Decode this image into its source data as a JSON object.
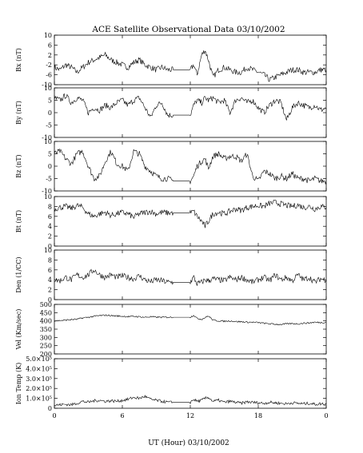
{
  "chart_data": {
    "type": "line",
    "title": "ACE Satellite Observational Data   03/10/2002",
    "xlabel": "UT (Hour)   03/10/2002",
    "x_ticks": [
      "0",
      "6",
      "12",
      "18",
      "0"
    ],
    "xlim": [
      0,
      24
    ],
    "grid": false,
    "panels": [
      {
        "ylabel": "Bx (nT)",
        "ylim": [
          -10,
          10
        ],
        "y_ticks": [
          "10",
          "6",
          "2",
          "-2",
          "-6",
          "-10"
        ],
        "series": [
          {
            "x": [
              0,
              0.5,
              1,
              1.5,
              2,
              2.5,
              3,
              3.5,
              4,
              4.5,
              5,
              5.5,
              6,
              6.5,
              7,
              7.5,
              8,
              8.5,
              9,
              9.5,
              10,
              10.5,
              11,
              11.5,
              12,
              12.3,
              12.6,
              13,
              13.3,
              13.6,
              14,
              14.5,
              15,
              15.5,
              16,
              16.5,
              17,
              17.5,
              18,
              18.5,
              19,
              19.5,
              20,
              20.5,
              21,
              21.5,
              22,
              22.5,
              23,
              23.5,
              24
            ],
            "y": [
              -3,
              -4,
              -2,
              -3,
              -5,
              -3,
              -1,
              0,
              1,
              2,
              0,
              -1,
              -2,
              -3,
              -1,
              0,
              -2,
              -3,
              -4,
              -3,
              -4,
              -4,
              -4,
              -4,
              -4,
              -2,
              -6,
              2,
              4,
              0,
              -7,
              -4,
              -3,
              -4,
              -5,
              -5,
              -3,
              -4,
              -5,
              -6,
              -8,
              -7,
              -6,
              -5,
              -4,
              -4,
              -5,
              -5,
              -5,
              -4,
              -4
            ]
          }
        ]
      },
      {
        "ylabel": "By (nT)",
        "ylim": [
          -10,
          10
        ],
        "y_ticks": [
          "10",
          "5",
          "0",
          "-5",
          "-10"
        ],
        "series": [
          {
            "x": [
              0,
              0.5,
              1,
              1.5,
              2,
              2.5,
              3,
              3.5,
              4,
              4.5,
              5,
              5.5,
              6,
              6.5,
              7,
              7.5,
              8,
              8.5,
              9,
              9.5,
              10,
              10.5,
              11,
              11.5,
              12,
              12.3,
              12.6,
              13,
              13.3,
              13.6,
              14,
              14.5,
              15,
              15.5,
              16,
              16.5,
              17,
              17.5,
              18,
              18.5,
              19,
              19.5,
              20,
              20.5,
              21,
              21.5,
              22,
              22.5,
              23,
              23.5,
              24
            ],
            "y": [
              6,
              5,
              7,
              4,
              6,
              5,
              0,
              2,
              1,
              3,
              2,
              4,
              5,
              3,
              5,
              6,
              2,
              -2,
              3,
              4,
              -1,
              -1,
              -1,
              -1,
              -1,
              3,
              5,
              4,
              6,
              5,
              6,
              4,
              5,
              0,
              5,
              6,
              4,
              5,
              2,
              0,
              3,
              5,
              4,
              -3,
              2,
              4,
              3,
              2,
              3,
              1,
              2
            ]
          }
        ]
      },
      {
        "ylabel": "Bz (nT)",
        "ylim": [
          -10,
          10
        ],
        "y_ticks": [
          "10",
          "5",
          "0",
          "-5",
          "-10"
        ],
        "series": [
          {
            "x": [
              0,
              0.5,
              1,
              1.5,
              2,
              2.5,
              3,
              3.5,
              4,
              4.5,
              5,
              5.5,
              6,
              6.5,
              7,
              7.5,
              8,
              8.5,
              9,
              9.5,
              10,
              10.5,
              11,
              11.5,
              12,
              12.3,
              12.6,
              13,
              13.3,
              13.6,
              14,
              14.5,
              15,
              15.5,
              16,
              16.5,
              17,
              17.5,
              18,
              18.5,
              19,
              19.5,
              20,
              20.5,
              21,
              21.5,
              22,
              22.5,
              23,
              23.5,
              24
            ],
            "y": [
              5,
              6,
              3,
              1,
              5,
              6,
              0,
              -5,
              -4,
              2,
              6,
              1,
              0,
              -2,
              6,
              5,
              0,
              -2,
              -4,
              -5,
              -5,
              -6,
              -6,
              -6,
              -6,
              -4,
              0,
              2,
              3,
              -1,
              4,
              5,
              3,
              4,
              4,
              2,
              5,
              -4,
              -6,
              -2,
              -3,
              -5,
              -4,
              -5,
              -3,
              -5,
              -5,
              -6,
              -5,
              -6,
              -6
            ]
          }
        ]
      },
      {
        "ylabel": "Bt (nT)",
        "ylim": [
          0,
          10
        ],
        "y_ticks": [
          "10",
          "8",
          "6",
          "4",
          "2",
          "0"
        ],
        "series": [
          {
            "x": [
              0,
              0.5,
              1,
              1.5,
              2,
              2.5,
              3,
              3.5,
              4,
              4.5,
              5,
              5.5,
              6,
              6.5,
              7,
              7.5,
              8,
              8.5,
              9,
              9.5,
              10,
              10.5,
              11,
              11.5,
              12,
              12.3,
              12.6,
              13,
              13.3,
              13.6,
              14,
              14.5,
              15,
              15.5,
              16,
              16.5,
              17,
              17.5,
              18,
              18.5,
              19,
              19.5,
              20,
              20.5,
              21,
              21.5,
              22,
              22.5,
              23,
              23.5,
              24
            ],
            "y": [
              7.5,
              7.8,
              8,
              7.6,
              8.2,
              7.8,
              6.5,
              6,
              6.5,
              6.8,
              6.2,
              6.5,
              6.8,
              6.5,
              5.8,
              6.5,
              6.8,
              7,
              6.5,
              6.8,
              6.7,
              6.7,
              6.7,
              6.7,
              6.7,
              7,
              6,
              5,
              4,
              5,
              6.5,
              6.8,
              6.5,
              7,
              7.5,
              7.2,
              7.8,
              8,
              8.2,
              8,
              8.6,
              8.8,
              8.5,
              8.2,
              8,
              8.3,
              7.8,
              8,
              7.5,
              8,
              7.8
            ]
          }
        ]
      },
      {
        "ylabel": "Den (1/CC)",
        "ylim": [
          0,
          10
        ],
        "y_ticks": [
          "10",
          "8",
          "6",
          "4",
          "2",
          "0"
        ],
        "series": [
          {
            "x": [
              0,
              0.5,
              1,
              1.5,
              2,
              2.5,
              3,
              3.5,
              4,
              4.5,
              5,
              5.5,
              6,
              6.5,
              7,
              7.5,
              8,
              8.5,
              9,
              9.5,
              10,
              10.5,
              11,
              11.5,
              12,
              12.3,
              12.6,
              13,
              13.3,
              13.6,
              14,
              14.5,
              15,
              15.5,
              16,
              16.5,
              17,
              17.5,
              18,
              18.5,
              19,
              19.5,
              20,
              20.5,
              21,
              21.5,
              22,
              22.5,
              23,
              23.5,
              24
            ],
            "y": [
              4,
              3.8,
              4.5,
              4,
              5,
              4.5,
              5,
              6,
              5,
              4.5,
              5,
              4.5,
              4.8,
              4.5,
              4.2,
              4.8,
              4,
              3.6,
              4,
              3.8,
              3.5,
              3.5,
              3.5,
              3.5,
              3.5,
              4.5,
              3.2,
              3.5,
              4,
              3.8,
              4.2,
              4,
              3.8,
              4.5,
              4,
              4.5,
              4,
              3.5,
              4,
              4.5,
              3.8,
              5,
              4,
              4.5,
              3.8,
              5,
              4,
              4.5,
              3.5,
              4.2,
              4
            ]
          }
        ]
      },
      {
        "ylabel": "Vel (Km/sec)",
        "ylim": [
          200,
          500
        ],
        "y_ticks": [
          "500",
          "450",
          "400",
          "350",
          "300",
          "250",
          "200"
        ],
        "series": [
          {
            "x": [
              0,
              0.5,
              1,
              1.5,
              2,
              2.5,
              3,
              3.5,
              4,
              4.5,
              5,
              5.5,
              6,
              6.5,
              7,
              7.5,
              8,
              8.5,
              9,
              9.5,
              10,
              10.5,
              11,
              11.5,
              12,
              12.3,
              12.6,
              13,
              13.3,
              13.6,
              14,
              14.5,
              15,
              15.5,
              16,
              16.5,
              17,
              17.5,
              18,
              18.5,
              19,
              19.5,
              20,
              20.5,
              21,
              21.5,
              22,
              22.5,
              23,
              23.5,
              24
            ],
            "y": [
              400,
              402,
              405,
              408,
              410,
              418,
              422,
              428,
              432,
              435,
              432,
              430,
              428,
              426,
              428,
              425,
              422,
              425,
              423,
              422,
              422,
              422,
              422,
              422,
              422,
              435,
              415,
              410,
              420,
              430,
              405,
              400,
              398,
              400,
              396,
              395,
              392,
              392,
              390,
              386,
              382,
              380,
              378,
              382,
              384,
              382,
              386,
              388,
              392,
              390,
              392
            ]
          }
        ]
      },
      {
        "ylabel": "Ion Temp (K)",
        "ylim": [
          0,
          500000
        ],
        "y_ticks": [
          "0",
          "1.0×10⁵",
          "2.0×10⁵",
          "3.0×10⁵",
          "4.0×10⁵",
          "5.0×10⁵"
        ],
        "series": [
          {
            "x": [
              0,
              0.5,
              1,
              1.5,
              2,
              2.5,
              3,
              3.5,
              4,
              4.5,
              5,
              5.5,
              6,
              6.5,
              7,
              7.5,
              8,
              8.5,
              9,
              9.5,
              10,
              10.5,
              11,
              11.5,
              12,
              12.3,
              12.6,
              13,
              13.3,
              13.6,
              14,
              14.5,
              15,
              15.5,
              16,
              16.5,
              17,
              17.5,
              18,
              18.5,
              19,
              19.5,
              20,
              20.5,
              21,
              21.5,
              22,
              22.5,
              23,
              23.5,
              24
            ],
            "y": [
              30000,
              35000,
              40000,
              35000,
              50000,
              70000,
              60000,
              75000,
              80000,
              70000,
              75000,
              70000,
              80000,
              90000,
              110000,
              100000,
              120000,
              90000,
              80000,
              70000,
              60000,
              60000,
              60000,
              60000,
              60000,
              90000,
              70000,
              80000,
              100000,
              110000,
              70000,
              80000,
              60000,
              70000,
              60000,
              50000,
              65000,
              60000,
              55000,
              50000,
              60000,
              55000,
              50000,
              45000,
              55000,
              50000,
              45000,
              50000,
              40000,
              45000,
              40000
            ]
          }
        ]
      }
    ]
  }
}
